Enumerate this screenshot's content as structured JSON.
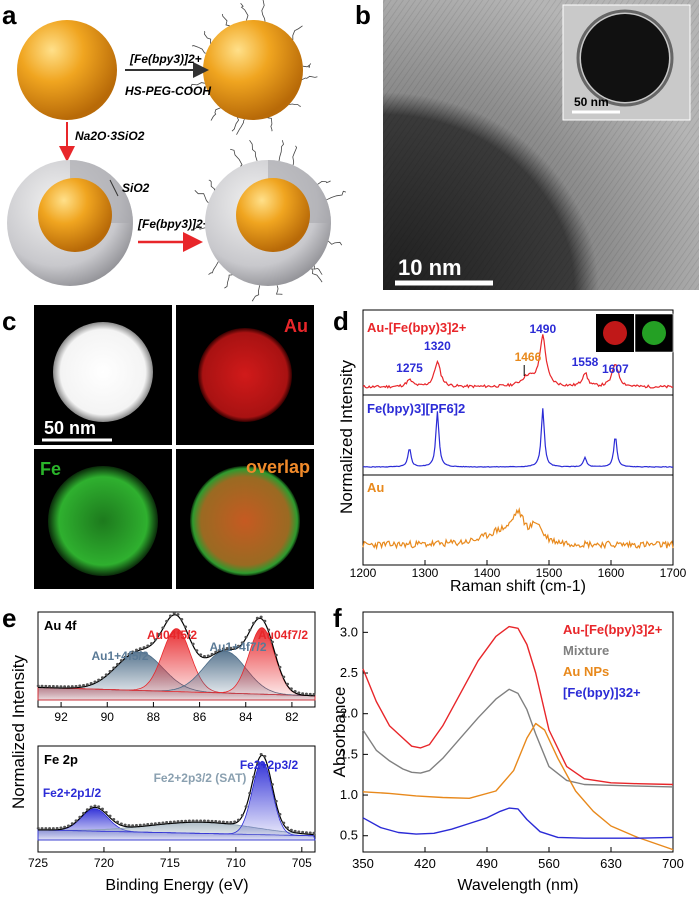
{
  "panel_labels": {
    "a": "a",
    "b": "b",
    "c": "c",
    "d": "d",
    "e": "e",
    "f": "f"
  },
  "panel_a": {
    "top_arrow_label1": "[Fe(bpy3)]2+",
    "top_arrow_label2": "HS-PEG-COOH",
    "down_arrow_label": "Na2O·3SiO2",
    "shell_label": "SiO2",
    "bottom_arrow_label": "[Fe(bpy3)]2+"
  },
  "panel_b": {
    "scalebar_main": "10 nm",
    "scalebar_inset": "50 nm"
  },
  "panel_c": {
    "scalebar": "50 nm",
    "au_label": "Au",
    "fe_label": "Fe",
    "overlap_label": "overlap",
    "colors": {
      "au": "#e8262a",
      "fe": "#2ab42a",
      "overlap": "#f08a2a"
    }
  },
  "panel_d": {
    "xlabel": "Raman shift (cm-1)",
    "ylabel": "Normalized Intensity",
    "xlim": [
      1200,
      1700
    ],
    "xticks": [
      "1200",
      "1300",
      "1400",
      "1500",
      "1600",
      "1700"
    ],
    "traces": [
      {
        "label": "Au-[Fe(bpy)3]2+",
        "color": "#e8262a"
      },
      {
        "label": "Fe(bpy)3][PF6]2",
        "color": "#2b2bd6"
      },
      {
        "label": "Au",
        "color": "#e8891c"
      }
    ],
    "peak_labels": [
      {
        "text": "1275",
        "value": 1275,
        "color": "#2b2bd6"
      },
      {
        "text": "1320",
        "value": 1320,
        "color": "#2b2bd6"
      },
      {
        "text": "1466",
        "value": 1466,
        "color": "#e8891c"
      },
      {
        "text": "1490",
        "value": 1490,
        "color": "#2b2bd6"
      },
      {
        "text": "1558",
        "value": 1558,
        "color": "#2b2bd6"
      },
      {
        "text": "1607",
        "value": 1607,
        "color": "#2b2bd6"
      }
    ]
  },
  "panel_e": {
    "ylabel": "Normalized Intensity",
    "xlabel": "Binding Energy (eV)",
    "top": {
      "title": "Au 4f",
      "xticks": [
        "92",
        "90",
        "88",
        "86",
        "84",
        "82"
      ],
      "xlim": [
        93,
        81
      ],
      "labels": [
        {
          "text": "Au1+4f5/2",
          "color": "#5a7a96"
        },
        {
          "text": "Au04f5/2",
          "color": "#e8262a"
        },
        {
          "text": "Au1+4f7/2",
          "color": "#5a7a96"
        },
        {
          "text": "Au04f7/2",
          "color": "#e8262a"
        }
      ]
    },
    "bottom": {
      "title": "Fe 2p",
      "xticks": [
        "725",
        "720",
        "715",
        "710",
        "705"
      ],
      "xlim": [
        725,
        704
      ],
      "labels": [
        {
          "text": "Fe2+2p1/2",
          "color": "#2b2bd6"
        },
        {
          "text": "Fe2+2p3/2 (SAT)",
          "color": "#8aa0b0"
        },
        {
          "text": "Fe2+2p3/2",
          "color": "#2b2bd6"
        }
      ]
    }
  },
  "panel_f": {
    "xlabel": "Wavelength (nm)",
    "ylabel": "Absorbance",
    "xlim": [
      350,
      700
    ],
    "ylim": [
      0.3,
      3.25
    ],
    "xticks": [
      "350",
      "420",
      "490",
      "560",
      "630",
      "700"
    ],
    "yticks": [
      "0.5",
      "1.0",
      "1.5",
      "2.0",
      "2.5",
      "3.0"
    ],
    "legend": [
      {
        "label": "Au-[Fe(bpy)3]2+",
        "color": "#e8262a"
      },
      {
        "label": "Mixture",
        "color": "#808080"
      },
      {
        "label": "Au NPs",
        "color": "#e8891c"
      },
      {
        "label": "[Fe(bpy)]32+",
        "color": "#2b2bd6"
      }
    ]
  },
  "chart_data": [
    {
      "type": "line",
      "panel": "f",
      "xlabel": "Wavelength (nm)",
      "ylabel": "Absorbance",
      "xlim": [
        350,
        700
      ],
      "ylim": [
        0.3,
        3.25
      ],
      "series": [
        {
          "name": "Au-[Fe(bpy)3]2+",
          "color": "#e8262a",
          "x": [
            350,
            365,
            380,
            395,
            405,
            415,
            425,
            440,
            460,
            480,
            500,
            515,
            525,
            535,
            545,
            560,
            580,
            600,
            630,
            660,
            700
          ],
          "y": [
            2.55,
            2.15,
            1.85,
            1.7,
            1.6,
            1.58,
            1.62,
            1.85,
            2.25,
            2.65,
            2.95,
            3.07,
            3.05,
            2.85,
            2.5,
            1.8,
            1.35,
            1.2,
            1.15,
            1.14,
            1.13
          ]
        },
        {
          "name": "Mixture",
          "color": "#808080",
          "x": [
            350,
            365,
            380,
            395,
            405,
            415,
            425,
            440,
            460,
            480,
            500,
            515,
            525,
            535,
            545,
            560,
            580,
            600,
            630,
            660,
            700
          ],
          "y": [
            1.8,
            1.55,
            1.42,
            1.32,
            1.28,
            1.27,
            1.3,
            1.45,
            1.7,
            1.95,
            2.18,
            2.3,
            2.25,
            2.05,
            1.75,
            1.35,
            1.18,
            1.13,
            1.12,
            1.11,
            1.1
          ]
        },
        {
          "name": "Au NPs",
          "color": "#e8891c",
          "x": [
            350,
            380,
            410,
            440,
            470,
            500,
            520,
            535,
            545,
            555,
            570,
            590,
            610,
            630,
            660,
            700
          ],
          "y": [
            1.04,
            1.02,
            0.99,
            0.97,
            0.96,
            1.05,
            1.3,
            1.7,
            1.88,
            1.8,
            1.45,
            1.05,
            0.8,
            0.62,
            0.48,
            0.33
          ]
        },
        {
          "name": "[Fe(bpy)]32+",
          "color": "#2b2bd6",
          "x": [
            350,
            370,
            390,
            410,
            430,
            450,
            470,
            490,
            505,
            515,
            525,
            535,
            550,
            570,
            600,
            630,
            660,
            700
          ],
          "y": [
            0.72,
            0.6,
            0.54,
            0.52,
            0.53,
            0.58,
            0.65,
            0.72,
            0.8,
            0.84,
            0.83,
            0.7,
            0.55,
            0.48,
            0.47,
            0.47,
            0.47,
            0.48
          ]
        }
      ]
    }
  ]
}
